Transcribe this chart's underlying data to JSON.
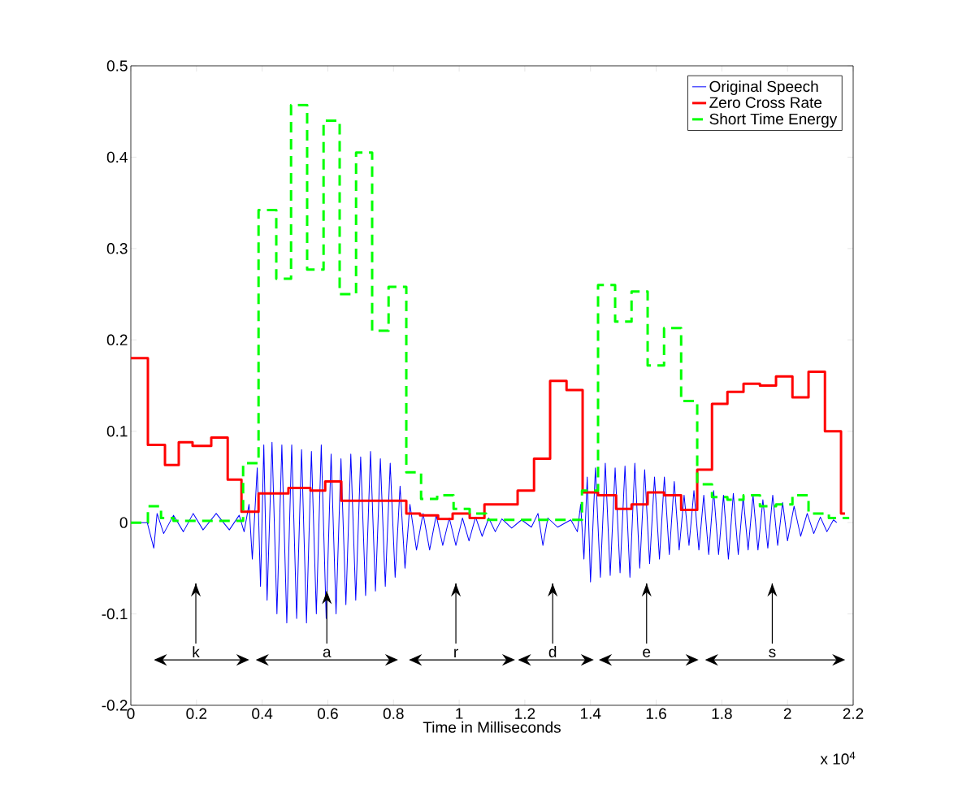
{
  "chart_data": {
    "type": "line",
    "xlabel": "Time in Milliseconds",
    "xlim": [
      0,
      2.2
    ],
    "xticks": [
      0,
      0.2,
      0.4,
      0.6,
      0.8,
      1,
      1.2,
      1.4,
      1.6,
      1.8,
      2,
      2.2
    ],
    "ylim": [
      -0.2,
      0.5
    ],
    "yticks": [
      -0.2,
      -0.1,
      0,
      0.1,
      0.2,
      0.3,
      0.4,
      0.5
    ],
    "grid": false,
    "legend": "top right",
    "marker": "none",
    "annotations": [
      "x 10$^{4}$",
      "k",
      {
        "text": "a",
        "x": 0.597,
        "y": -0.075
      },
      "r",
      "d",
      "e",
      "s"
    ],
    "series": [
      {
        "name": "Original Speech",
        "color": "#0000ff",
        "line_style": "solid",
        "x": [
          0,
          0.05,
          0.07,
          0.08,
          0.1,
          0.13,
          0.16,
          0.19,
          0.22,
          0.26,
          0.3,
          0.33,
          0.345,
          0.36,
          0.37,
          0.385,
          0.395,
          0.405,
          0.415,
          0.43,
          0.445,
          0.46,
          0.475,
          0.49,
          0.505,
          0.52,
          0.535,
          0.55,
          0.565,
          0.58,
          0.595,
          0.61,
          0.625,
          0.64,
          0.655,
          0.67,
          0.685,
          0.7,
          0.715,
          0.73,
          0.745,
          0.76,
          0.775,
          0.79,
          0.805,
          0.82,
          0.835,
          0.85,
          0.87,
          0.89,
          0.91,
          0.93,
          0.95,
          0.97,
          0.99,
          1.01,
          1.03,
          1.05,
          1.07,
          1.09,
          1.11,
          1.13,
          1.16,
          1.19,
          1.22,
          1.24,
          1.255,
          1.27,
          1.3,
          1.34,
          1.36,
          1.37,
          1.38,
          1.39,
          1.4,
          1.415,
          1.43,
          1.445,
          1.46,
          1.475,
          1.49,
          1.505,
          1.52,
          1.535,
          1.55,
          1.565,
          1.58,
          1.595,
          1.61,
          1.625,
          1.64,
          1.655,
          1.67,
          1.685,
          1.7,
          1.715,
          1.73,
          1.745,
          1.76,
          1.775,
          1.79,
          1.805,
          1.82,
          1.835,
          1.85,
          1.865,
          1.88,
          1.895,
          1.91,
          1.925,
          1.94,
          1.955,
          1.97,
          1.985,
          2.0,
          2.02,
          2.04,
          2.06,
          2.08,
          2.1,
          2.12,
          2.14,
          2.15
        ],
        "values": [
          0,
          0,
          -0.028,
          0.01,
          -0.012,
          0.008,
          -0.01,
          0.01,
          -0.008,
          0.01,
          -0.008,
          0.008,
          -0.01,
          0.02,
          -0.04,
          0.06,
          -0.07,
          0.085,
          -0.085,
          0.088,
          -0.1,
          0.085,
          -0.11,
          0.085,
          -0.105,
          0.08,
          -0.11,
          0.078,
          -0.1,
          0.085,
          -0.105,
          0.075,
          -0.1,
          0.07,
          -0.09,
          0.075,
          -0.085,
          0.072,
          -0.08,
          0.078,
          -0.075,
          0.07,
          -0.07,
          0.065,
          -0.06,
          0.04,
          -0.05,
          0.02,
          -0.03,
          0.01,
          -0.03,
          0.008,
          -0.025,
          0.005,
          -0.025,
          0.005,
          -0.02,
          0.006,
          -0.015,
          0.005,
          -0.01,
          0.004,
          -0.006,
          0.003,
          -0.005,
          0.01,
          -0.025,
          0.005,
          -0.005,
          0.003,
          -0.01,
          0.02,
          -0.04,
          0.05,
          -0.065,
          0.06,
          -0.06,
          0.065,
          -0.058,
          0.06,
          -0.055,
          0.062,
          -0.06,
          0.065,
          -0.05,
          0.058,
          -0.045,
          0.05,
          -0.04,
          0.05,
          -0.035,
          0.045,
          -0.03,
          0.03,
          -0.025,
          0.035,
          -0.03,
          0.03,
          -0.035,
          0.035,
          -0.035,
          0.03,
          -0.04,
          0.032,
          -0.035,
          0.028,
          -0.03,
          0.03,
          -0.03,
          0.025,
          -0.028,
          0.03,
          -0.025,
          0.022,
          -0.02,
          0.018,
          -0.015,
          0.01,
          -0.012,
          0.006,
          -0.01,
          0.003,
          0
        ]
      },
      {
        "name": "Zero Cross Rate",
        "type": "step",
        "color": "#ff0000",
        "line_style": "solid",
        "x": [
          0,
          0.052,
          0.104,
          0.146,
          0.188,
          0.245,
          0.295,
          0.337,
          0.389,
          0.48,
          0.547,
          0.592,
          0.641,
          0.839,
          0.881,
          0.936,
          0.98,
          1.032,
          1.077,
          1.178,
          1.228,
          1.277,
          1.327,
          1.376,
          1.423,
          1.478,
          1.525,
          1.574,
          1.624,
          1.676,
          1.725,
          1.77,
          1.817,
          1.866,
          1.916,
          1.965,
          2.015,
          2.064,
          2.114,
          2.163,
          2.175
        ],
        "values": [
          0.18,
          0.085,
          0.063,
          0.088,
          0.084,
          0.093,
          0.047,
          0.012,
          0.032,
          0.038,
          0.035,
          0.045,
          0.024,
          0.01,
          0.008,
          0.004,
          0.01,
          0.005,
          0.02,
          0.035,
          0.07,
          0.155,
          0.145,
          0.033,
          0.03,
          0.015,
          0.02,
          0.033,
          0.03,
          0.014,
          0.058,
          0.13,
          0.143,
          0.152,
          0.15,
          0.16,
          0.137,
          0.165,
          0.1,
          0.01,
          0.01
        ]
      },
      {
        "name": "Short Time Energy",
        "type": "step",
        "color": "#00ff00",
        "line_style": "dashed",
        "x": [
          0,
          0.052,
          0.092,
          0.13,
          0.342,
          0.389,
          0.443,
          0.488,
          0.537,
          0.587,
          0.636,
          0.686,
          0.735,
          0.785,
          0.839,
          0.884,
          0.933,
          0.983,
          1.032,
          1.082,
          1.374,
          1.423,
          1.475,
          1.525,
          1.574,
          1.624,
          1.676,
          1.725,
          1.77,
          1.817,
          1.866,
          1.916,
          1.965,
          2.015,
          2.064,
          2.126,
          2.188
        ],
        "values": [
          0,
          0.018,
          0.005,
          0.002,
          0.065,
          0.342,
          0.267,
          0.457,
          0.277,
          0.44,
          0.25,
          0.405,
          0.21,
          0.258,
          0.055,
          0.026,
          0.03,
          0.015,
          0.01,
          0.003,
          0.035,
          0.26,
          0.22,
          0.253,
          0.172,
          0.213,
          0.133,
          0.042,
          0.028,
          0.025,
          0.03,
          0.018,
          0.02,
          0.03,
          0.01,
          0.005,
          0.005
        ]
      }
    ]
  }
}
